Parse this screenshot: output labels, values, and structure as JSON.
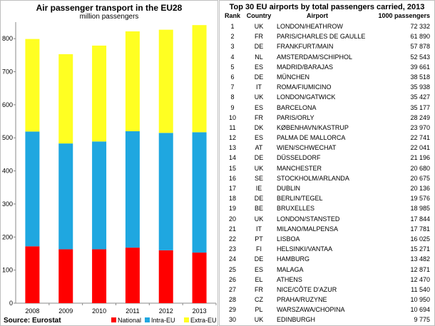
{
  "left": {
    "title": "Air passenger transport in the EU28",
    "subtitle": "million passengers",
    "source": "Source: Eurostat"
  },
  "chart_data": {
    "type": "bar",
    "stacked": true,
    "title": "Air passenger transport in the EU28",
    "subtitle": "million passengers",
    "categories": [
      "2008",
      "2009",
      "2010",
      "2011",
      "2012",
      "2013"
    ],
    "series": [
      {
        "name": "National",
        "color": "#ff0000",
        "values": [
          172,
          163,
          163,
          168,
          160,
          153
        ]
      },
      {
        "name": "Intra-EU",
        "color": "#1fa7e0",
        "values": [
          347,
          320,
          326,
          352,
          355,
          364
        ]
      },
      {
        "name": "Extra-EU",
        "color": "#ffff22",
        "values": [
          280,
          270,
          290,
          302,
          312,
          324
        ]
      }
    ],
    "ylim": [
      0,
      850
    ],
    "yticks": [
      "0",
      "100",
      "200",
      "300",
      "400",
      "500",
      "600",
      "700",
      "800"
    ],
    "legend": "bottom-right",
    "grid": false
  },
  "right": {
    "title": "Top 30 EU airports by total passengers carried, 2013",
    "headers": {
      "rank": "Rank",
      "country": "Country",
      "airport": "Airport",
      "passengers": "1000 passengers"
    },
    "rows": [
      {
        "rank": "1",
        "country": "UK",
        "airport": "LONDON/HEATHROW",
        "passengers": "72 332"
      },
      {
        "rank": "2",
        "country": "FR",
        "airport": "PARIS/CHARLES DE GAULLE",
        "passengers": "61 890"
      },
      {
        "rank": "3",
        "country": "DE",
        "airport": "FRANKFURT/MAIN",
        "passengers": "57 878"
      },
      {
        "rank": "4",
        "country": "NL",
        "airport": "AMSTERDAM/SCHIPHOL",
        "passengers": "52 543"
      },
      {
        "rank": "5",
        "country": "ES",
        "airport": "MADRID/BARAJAS",
        "passengers": "39 661"
      },
      {
        "rank": "6",
        "country": "DE",
        "airport": "MÜNCHEN",
        "passengers": "38 518"
      },
      {
        "rank": "7",
        "country": "IT",
        "airport": "ROMA/FIUMICINO",
        "passengers": "35 938"
      },
      {
        "rank": "8",
        "country": "UK",
        "airport": "LONDON/GATWICK",
        "passengers": "35 427"
      },
      {
        "rank": "9",
        "country": "ES",
        "airport": "BARCELONA",
        "passengers": "35 177"
      },
      {
        "rank": "10",
        "country": "FR",
        "airport": "PARIS/ORLY",
        "passengers": "28 249"
      },
      {
        "rank": "11",
        "country": "DK",
        "airport": "KØBENHAVN/KASTRUP",
        "passengers": "23 970"
      },
      {
        "rank": "12",
        "country": "ES",
        "airport": "PALMA DE MALLORCA",
        "passengers": "22 741"
      },
      {
        "rank": "13",
        "country": "AT",
        "airport": "WIEN/SCHWECHAT",
        "passengers": "22 041"
      },
      {
        "rank": "14",
        "country": "DE",
        "airport": "DÜSSELDORF",
        "passengers": "21 196"
      },
      {
        "rank": "15",
        "country": "UK",
        "airport": "MANCHESTER",
        "passengers": "20 680"
      },
      {
        "rank": "16",
        "country": "SE",
        "airport": "STOCKHOLM/ARLANDA",
        "passengers": "20 675"
      },
      {
        "rank": "17",
        "country": "IE",
        "airport": "DUBLIN",
        "passengers": "20 136"
      },
      {
        "rank": "18",
        "country": "DE",
        "airport": "BERLIN/TEGEL",
        "passengers": "19 576"
      },
      {
        "rank": "19",
        "country": "BE",
        "airport": "BRUXELLES",
        "passengers": "18 985"
      },
      {
        "rank": "20",
        "country": "UK",
        "airport": "LONDON/STANSTED",
        "passengers": "17 844"
      },
      {
        "rank": "21",
        "country": "IT",
        "airport": "MILANO/MALPENSA",
        "passengers": "17 781"
      },
      {
        "rank": "22",
        "country": "PT",
        "airport": "LISBOA",
        "passengers": "16 025"
      },
      {
        "rank": "23",
        "country": "FI",
        "airport": "HELSINKI/VANTAA",
        "passengers": "15 271"
      },
      {
        "rank": "24",
        "country": "DE",
        "airport": "HAMBURG",
        "passengers": "13 482"
      },
      {
        "rank": "25",
        "country": "ES",
        "airport": "MALAGA",
        "passengers": "12 871"
      },
      {
        "rank": "26",
        "country": "EL",
        "airport": "ATHENS",
        "passengers": "12 470"
      },
      {
        "rank": "27",
        "country": "FR",
        "airport": "NICE/CÔTE D'AZUR",
        "passengers": "11 540"
      },
      {
        "rank": "28",
        "country": "CZ",
        "airport": "PRAHA/RUZYNE",
        "passengers": "10 950"
      },
      {
        "rank": "29",
        "country": "PL",
        "airport": "WARSZAWA/CHOPINA",
        "passengers": "10 694"
      },
      {
        "rank": "30",
        "country": "UK",
        "airport": "EDINBURGH",
        "passengers": "9 775"
      }
    ]
  }
}
